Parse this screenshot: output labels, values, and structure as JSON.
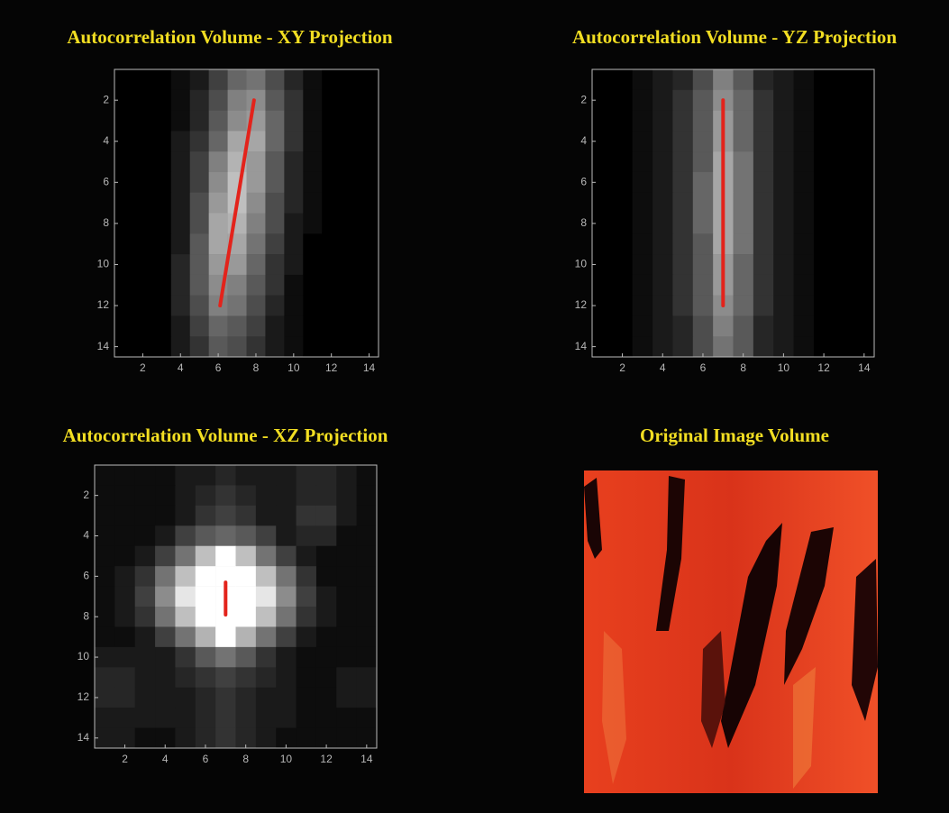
{
  "chart_data": [
    {
      "type": "heatmap",
      "title": "Autocorrelation Volume - XY Projection",
      "x": [
        1,
        2,
        3,
        4,
        5,
        6,
        7,
        8,
        9,
        10,
        11,
        12,
        13,
        14
      ],
      "y": [
        1,
        2,
        3,
        4,
        5,
        6,
        7,
        8,
        9,
        10,
        11,
        12,
        13,
        14
      ],
      "xlim": [
        0.5,
        14.5
      ],
      "ylim": [
        0.5,
        14.5
      ],
      "y_reversed": true,
      "xticks": [
        2,
        4,
        6,
        8,
        10,
        12,
        14
      ],
      "yticks": [
        2,
        4,
        6,
        8,
        10,
        12,
        14
      ],
      "colormap": "gray",
      "vmax": 100,
      "values": [
        [
          0,
          0,
          0,
          5,
          10,
          25,
          40,
          45,
          30,
          15,
          5,
          0,
          0,
          0
        ],
        [
          0,
          0,
          0,
          5,
          15,
          30,
          50,
          55,
          35,
          20,
          5,
          0,
          0,
          0
        ],
        [
          0,
          0,
          0,
          5,
          15,
          35,
          55,
          60,
          40,
          20,
          5,
          0,
          0,
          0
        ],
        [
          0,
          0,
          0,
          10,
          20,
          40,
          65,
          65,
          40,
          20,
          5,
          0,
          0,
          0
        ],
        [
          0,
          0,
          0,
          10,
          25,
          50,
          70,
          60,
          35,
          15,
          5,
          0,
          0,
          0
        ],
        [
          0,
          0,
          0,
          10,
          25,
          55,
          75,
          60,
          35,
          15,
          5,
          0,
          0,
          0
        ],
        [
          0,
          0,
          0,
          10,
          30,
          60,
          75,
          55,
          30,
          15,
          5,
          0,
          0,
          0
        ],
        [
          0,
          0,
          0,
          10,
          30,
          65,
          70,
          50,
          30,
          10,
          5,
          0,
          0,
          0
        ],
        [
          0,
          0,
          0,
          10,
          35,
          65,
          65,
          45,
          25,
          10,
          0,
          0,
          0,
          0
        ],
        [
          0,
          0,
          0,
          15,
          35,
          60,
          60,
          40,
          20,
          10,
          0,
          0,
          0,
          0
        ],
        [
          0,
          0,
          0,
          15,
          35,
          55,
          50,
          35,
          20,
          5,
          0,
          0,
          0,
          0
        ],
        [
          0,
          0,
          0,
          15,
          30,
          50,
          45,
          30,
          15,
          5,
          0,
          0,
          0,
          0
        ],
        [
          0,
          0,
          0,
          10,
          25,
          40,
          35,
          25,
          10,
          5,
          0,
          0,
          0,
          0
        ],
        [
          0,
          0,
          0,
          10,
          20,
          35,
          30,
          20,
          10,
          5,
          0,
          0,
          0,
          0
        ]
      ],
      "line": {
        "x": [
          7.9,
          6.1
        ],
        "y": [
          2,
          12
        ],
        "color": "#e3231b"
      }
    },
    {
      "type": "heatmap",
      "title": "Autocorrelation Volume - YZ Projection",
      "x": [
        1,
        2,
        3,
        4,
        5,
        6,
        7,
        8,
        9,
        10,
        11,
        12,
        13,
        14
      ],
      "y": [
        1,
        2,
        3,
        4,
        5,
        6,
        7,
        8,
        9,
        10,
        11,
        12,
        13,
        14
      ],
      "xlim": [
        0.5,
        14.5
      ],
      "ylim": [
        0.5,
        14.5
      ],
      "y_reversed": true,
      "xticks": [
        2,
        4,
        6,
        8,
        10,
        12,
        14
      ],
      "yticks": [
        2,
        4,
        6,
        8,
        10,
        12,
        14
      ],
      "colormap": "gray",
      "vmax": 100,
      "values": [
        [
          0,
          0,
          5,
          10,
          15,
          30,
          50,
          35,
          15,
          10,
          5,
          0,
          0,
          0
        ],
        [
          0,
          0,
          5,
          10,
          20,
          35,
          55,
          40,
          20,
          10,
          5,
          0,
          0,
          0
        ],
        [
          0,
          0,
          5,
          10,
          20,
          35,
          60,
          40,
          20,
          10,
          5,
          0,
          0,
          0
        ],
        [
          0,
          0,
          5,
          10,
          20,
          35,
          60,
          40,
          20,
          10,
          5,
          0,
          0,
          0
        ],
        [
          0,
          0,
          5,
          10,
          20,
          35,
          65,
          45,
          20,
          10,
          5,
          0,
          0,
          0
        ],
        [
          0,
          0,
          5,
          10,
          20,
          40,
          65,
          45,
          20,
          10,
          5,
          0,
          0,
          0
        ],
        [
          0,
          0,
          5,
          10,
          20,
          40,
          65,
          45,
          20,
          10,
          5,
          0,
          0,
          0
        ],
        [
          0,
          0,
          5,
          10,
          20,
          40,
          65,
          45,
          20,
          10,
          5,
          0,
          0,
          0
        ],
        [
          0,
          0,
          5,
          10,
          20,
          35,
          65,
          45,
          20,
          10,
          5,
          0,
          0,
          0
        ],
        [
          0,
          0,
          5,
          10,
          20,
          35,
          60,
          40,
          20,
          10,
          5,
          0,
          0,
          0
        ],
        [
          0,
          0,
          5,
          10,
          20,
          35,
          60,
          40,
          20,
          10,
          5,
          0,
          0,
          0
        ],
        [
          0,
          0,
          5,
          10,
          20,
          35,
          55,
          40,
          20,
          10,
          5,
          0,
          0,
          0
        ],
        [
          0,
          0,
          5,
          10,
          15,
          30,
          50,
          35,
          15,
          10,
          5,
          0,
          0,
          0
        ],
        [
          0,
          0,
          5,
          10,
          15,
          30,
          45,
          35,
          15,
          10,
          5,
          0,
          0,
          0
        ]
      ],
      "line": {
        "x": [
          7,
          7
        ],
        "y": [
          2,
          12
        ],
        "color": "#e3231b"
      }
    },
    {
      "type": "heatmap",
      "title": "Autocorrelation Volume - XZ Projection",
      "x": [
        1,
        2,
        3,
        4,
        5,
        6,
        7,
        8,
        9,
        10,
        11,
        12,
        13,
        14
      ],
      "y": [
        1,
        2,
        3,
        4,
        5,
        6,
        7,
        8,
        9,
        10,
        11,
        12,
        13,
        14
      ],
      "xlim": [
        0.5,
        14.5
      ],
      "ylim": [
        0.5,
        14.5
      ],
      "y_reversed": true,
      "xticks": [
        2,
        4,
        6,
        8,
        10,
        12,
        14
      ],
      "yticks": [
        2,
        4,
        6,
        8,
        10,
        12,
        14
      ],
      "colormap": "gray",
      "vmax": 100,
      "values": [
        [
          5,
          5,
          5,
          5,
          10,
          10,
          15,
          10,
          10,
          10,
          15,
          15,
          10,
          5
        ],
        [
          5,
          5,
          5,
          5,
          10,
          15,
          20,
          15,
          10,
          10,
          15,
          15,
          10,
          5
        ],
        [
          5,
          5,
          5,
          5,
          10,
          20,
          25,
          20,
          10,
          10,
          20,
          20,
          10,
          5
        ],
        [
          5,
          5,
          5,
          10,
          25,
          35,
          40,
          35,
          25,
          10,
          15,
          15,
          5,
          5
        ],
        [
          5,
          5,
          10,
          25,
          45,
          75,
          100,
          75,
          45,
          25,
          10,
          5,
          5,
          5
        ],
        [
          5,
          10,
          20,
          45,
          75,
          100,
          100,
          100,
          75,
          45,
          20,
          5,
          5,
          5
        ],
        [
          5,
          10,
          25,
          55,
          90,
          100,
          100,
          100,
          90,
          55,
          25,
          10,
          5,
          5
        ],
        [
          5,
          10,
          20,
          45,
          75,
          100,
          100,
          100,
          75,
          45,
          20,
          10,
          5,
          5
        ],
        [
          5,
          5,
          10,
          25,
          45,
          70,
          100,
          70,
          45,
          25,
          10,
          5,
          5,
          5
        ],
        [
          10,
          10,
          10,
          10,
          20,
          35,
          45,
          35,
          20,
          10,
          5,
          5,
          5,
          5
        ],
        [
          15,
          15,
          10,
          10,
          15,
          20,
          25,
          20,
          15,
          10,
          5,
          5,
          10,
          10
        ],
        [
          15,
          15,
          10,
          10,
          10,
          15,
          20,
          15,
          10,
          10,
          5,
          5,
          10,
          10
        ],
        [
          10,
          10,
          10,
          10,
          10,
          15,
          20,
          15,
          10,
          10,
          5,
          5,
          5,
          5
        ],
        [
          10,
          10,
          5,
          5,
          10,
          15,
          20,
          15,
          10,
          5,
          5,
          5,
          5,
          5
        ]
      ],
      "line": {
        "x": [
          7,
          7
        ],
        "y": [
          6.3,
          7.9
        ],
        "color": "#e3231b"
      }
    },
    {
      "type": "image",
      "title": "Original Image Volume"
    }
  ]
}
